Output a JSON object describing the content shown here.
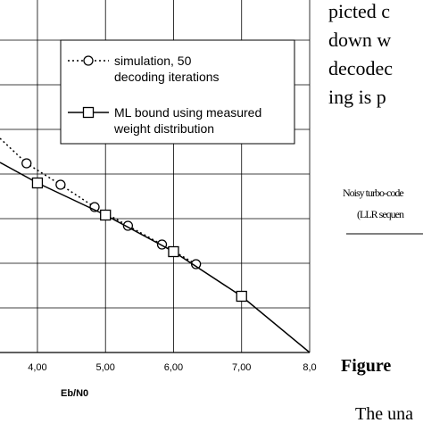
{
  "chart_data": {
    "type": "line",
    "x_label": "Eb/N0",
    "xlim": [
      3.45,
      8.0
    ],
    "ylim": [
      0,
      8
    ],
    "xticks": [
      {
        "value": 4,
        "label": "4,00"
      },
      {
        "value": 5,
        "label": "5,00"
      },
      {
        "value": 6,
        "label": "6,00"
      },
      {
        "value": 7,
        "label": "7,00"
      },
      {
        "value": 8,
        "label": "8,0"
      }
    ],
    "ygrid": [
      1,
      2,
      3,
      4,
      5,
      6,
      7
    ],
    "series": [
      {
        "name": "simulation, 50 decoding iterations",
        "color": "#000",
        "style": "dotted",
        "marker": "circle",
        "x": [
          3.45,
          3.84,
          4.34,
          4.84,
          5.33,
          5.83,
          6.33
        ],
        "values": [
          4.8,
          4.24,
          3.76,
          3.26,
          2.84,
          2.42,
          1.98
        ]
      },
      {
        "name": "ML bound using measured weight distribution",
        "color": "#000",
        "style": "solid",
        "marker": "square",
        "x": [
          3.45,
          4,
          5,
          6,
          7,
          8
        ],
        "values": [
          4.26,
          3.8,
          3.08,
          2.26,
          1.26,
          0
        ]
      }
    ]
  },
  "text": {
    "lines": [
      "picted c",
      "down w",
      "decodec",
      "ing is p"
    ],
    "caption_a": "Noisy turbo-code",
    "caption_b": "(LLR sequen",
    "figure": "Figure",
    "body": "The una"
  }
}
